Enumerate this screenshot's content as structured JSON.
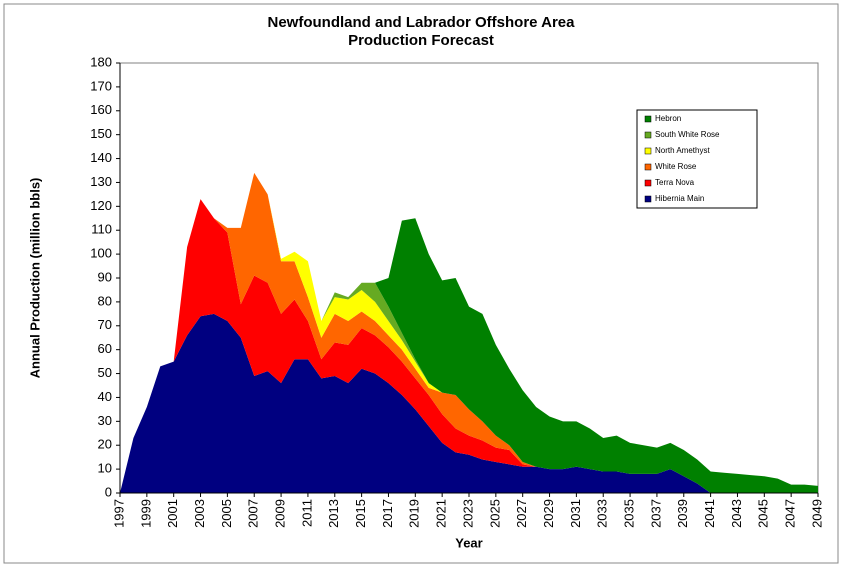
{
  "chart_data": {
    "type": "stacked_area",
    "title": "Newfoundland and Labrador Offshore Area",
    "subtitle": "Production Forecast",
    "x_label": "Year",
    "y_label": "Annual Production (million bbls)",
    "x": [
      1997,
      1998,
      1999,
      2000,
      2001,
      2002,
      2003,
      2004,
      2005,
      2006,
      2007,
      2008,
      2009,
      2010,
      2011,
      2012,
      2013,
      2014,
      2015,
      2016,
      2017,
      2018,
      2019,
      2020,
      2021,
      2022,
      2023,
      2024,
      2025,
      2026,
      2027,
      2028,
      2029,
      2030,
      2031,
      2032,
      2033,
      2034,
      2035,
      2036,
      2037,
      2038,
      2039,
      2040,
      2041,
      2042,
      2043,
      2044,
      2045,
      2046,
      2047,
      2048,
      2049
    ],
    "xlim": [
      1997,
      2049
    ],
    "xticks": [
      1997,
      1999,
      2001,
      2003,
      2005,
      2007,
      2009,
      2011,
      2013,
      2015,
      2017,
      2019,
      2021,
      2023,
      2025,
      2027,
      2029,
      2031,
      2033,
      2035,
      2037,
      2039,
      2041,
      2043,
      2045,
      2047,
      2049
    ],
    "ylim": [
      0,
      180
    ],
    "yticks": [
      0,
      10,
      20,
      30,
      40,
      50,
      60,
      70,
      80,
      90,
      100,
      110,
      120,
      130,
      140,
      150,
      160,
      170,
      180
    ],
    "legend": "upper right",
    "series": [
      {
        "name": "Hibernia Main",
        "color": "#000080",
        "values": [
          0,
          23,
          36,
          53,
          55,
          66,
          74,
          75,
          72,
          65,
          49,
          51,
          46,
          56,
          56,
          48,
          49,
          46,
          52,
          50,
          46,
          41,
          35,
          28,
          21,
          17,
          16,
          14,
          13,
          12,
          11,
          11,
          10,
          10,
          11,
          10,
          9,
          9,
          8,
          8,
          8,
          10,
          7,
          4,
          0,
          0,
          0,
          0,
          0,
          0,
          0,
          0,
          0
        ]
      },
      {
        "name": "Terra Nova",
        "color": "#ff0000",
        "values": [
          0,
          0,
          0,
          0,
          0,
          37,
          49,
          40,
          37,
          14,
          42,
          37,
          29,
          25,
          16,
          8,
          14,
          16,
          17,
          16,
          15,
          14,
          13,
          13,
          12,
          10,
          8,
          8,
          6,
          6,
          1,
          0,
          0,
          0,
          0,
          0,
          0,
          0,
          0,
          0,
          0,
          0,
          0,
          0,
          0,
          0,
          0,
          0,
          0,
          0,
          0,
          0,
          0
        ]
      },
      {
        "name": "White Rose",
        "color": "#ff6600",
        "values": [
          0,
          0,
          0,
          0,
          0,
          0,
          0,
          0,
          2,
          32,
          43,
          37,
          22,
          16,
          10,
          9,
          12,
          10,
          7,
          6,
          5,
          5,
          4,
          3,
          9,
          14,
          11,
          8,
          5,
          2,
          1,
          0,
          0,
          0,
          0,
          0,
          0,
          0,
          0,
          0,
          0,
          0,
          0,
          0,
          0,
          0,
          0,
          0,
          0,
          0,
          0,
          0,
          0
        ]
      },
      {
        "name": "North Amethyst",
        "color": "#ffff00",
        "values": [
          0,
          0,
          0,
          0,
          0,
          0,
          0,
          0,
          0,
          0,
          0,
          0,
          1,
          4,
          15,
          7,
          7,
          9,
          9,
          8,
          6,
          4,
          3,
          2,
          0,
          0,
          0,
          0,
          0,
          0,
          0,
          0,
          0,
          0,
          0,
          0,
          0,
          0,
          0,
          0,
          0,
          0,
          0,
          0,
          0,
          0,
          0,
          0,
          0,
          0,
          0,
          0,
          0
        ]
      },
      {
        "name": "South White Rose",
        "color": "#66aa22",
        "values": [
          0,
          0,
          0,
          0,
          0,
          0,
          0,
          0,
          0,
          0,
          0,
          0,
          0,
          0,
          0,
          0,
          2,
          1,
          3,
          8,
          6,
          3,
          1,
          0,
          0,
          0,
          0,
          0,
          0,
          0,
          0,
          0,
          0,
          0,
          0,
          0,
          0,
          0,
          0,
          0,
          0,
          0,
          0,
          0,
          0,
          0,
          0,
          0,
          0,
          0,
          0,
          0,
          0
        ]
      },
      {
        "name": "Hebron",
        "color": "#008000",
        "values": [
          0,
          0,
          0,
          0,
          0,
          0,
          0,
          0,
          0,
          0,
          0,
          0,
          0,
          0,
          0,
          0,
          0,
          0,
          0,
          0,
          12,
          47,
          59,
          54,
          47,
          49,
          43,
          45,
          38,
          32,
          30,
          25,
          22,
          20,
          19,
          17,
          14,
          15,
          13,
          12,
          11,
          11,
          11,
          10,
          9,
          8.5,
          8,
          7.5,
          7,
          6,
          3.5,
          3.5,
          3
        ]
      }
    ]
  }
}
